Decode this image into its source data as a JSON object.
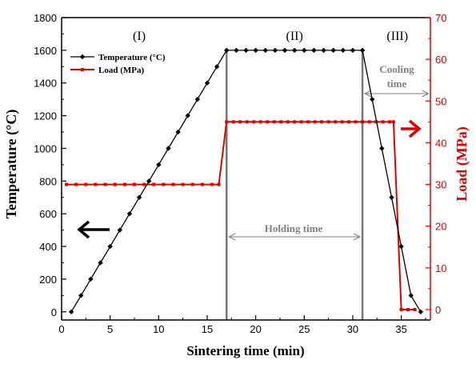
{
  "chart_data": {
    "type": "line",
    "xlabel": "Sintering time (min)",
    "ylabel_left": "Temperature (°C)",
    "ylabel_right": "Load (MPa)",
    "xlim": [
      0,
      38
    ],
    "ylim_left": [
      -50,
      1800
    ],
    "ylim_right": [
      -2.5,
      70
    ],
    "x_ticks": [
      0,
      5,
      10,
      15,
      20,
      25,
      30,
      35
    ],
    "y_left_ticks": [
      0,
      200,
      400,
      600,
      800,
      1000,
      1200,
      1400,
      1600,
      1800
    ],
    "y_right_ticks": [
      0,
      10,
      20,
      30,
      40,
      50,
      60,
      70
    ],
    "colors": {
      "temperature": "#000000",
      "load": "#e00000",
      "annotation": "#808080",
      "right_axis": "#e00000"
    },
    "series": [
      {
        "name": "Temperature (°C)",
        "axis": "left",
        "marker": "diamond",
        "x": [
          1,
          2,
          3,
          4,
          5,
          6,
          7,
          8,
          9,
          10,
          11,
          12,
          13,
          14,
          15,
          16,
          17,
          18,
          19,
          20,
          21,
          22,
          23,
          24,
          25,
          26,
          27,
          28,
          29,
          30,
          31,
          32,
          33,
          34,
          35,
          36,
          37
        ],
        "y": [
          0,
          100,
          200,
          300,
          400,
          500,
          600,
          700,
          800,
          900,
          1000,
          1100,
          1200,
          1300,
          1400,
          1500,
          1600,
          1600,
          1600,
          1600,
          1600,
          1600,
          1600,
          1600,
          1600,
          1600,
          1600,
          1600,
          1600,
          1600,
          1600,
          1300,
          1000,
          700,
          400,
          100,
          0
        ]
      },
      {
        "name": "Load (MPa)",
        "axis": "right",
        "marker": "square",
        "x": [
          0.5,
          1.5,
          2.5,
          3.5,
          4.5,
          5.5,
          6.5,
          7.5,
          8.5,
          9.5,
          10.5,
          11.5,
          12.5,
          13.5,
          14.5,
          15.5,
          16.2,
          17,
          17.7,
          18.4,
          19.1,
          19.8,
          20.5,
          21.2,
          21.9,
          22.6,
          23.3,
          24,
          24.7,
          25.4,
          26.1,
          26.8,
          27.5,
          28.2,
          28.9,
          29.6,
          30.3,
          31,
          31.7,
          32.4,
          33.1,
          33.8,
          34.2,
          35,
          35.7,
          36.4
        ],
        "y": [
          30,
          30,
          30,
          30,
          30,
          30,
          30,
          30,
          30,
          30,
          30,
          30,
          30,
          30,
          30,
          30,
          30,
          45,
          45,
          45,
          45,
          45,
          45,
          45,
          45,
          45,
          45,
          45,
          45,
          45,
          45,
          45,
          45,
          45,
          45,
          45,
          45,
          45,
          45,
          45,
          45,
          45,
          45,
          0,
          0,
          0
        ]
      }
    ],
    "legend_position": "top-left",
    "regions": [
      {
        "label": "(I)",
        "x": 8
      },
      {
        "label": "(II)",
        "x": 24
      },
      {
        "label": "(III)",
        "x": 34.6
      }
    ],
    "vertical_lines_x": [
      17,
      31
    ],
    "annotations": [
      {
        "text": "Holding time",
        "from_x": 17,
        "to_x": 31
      },
      {
        "text": "Cooling time",
        "line1": "Cooling",
        "line2": "time",
        "from_x": 31,
        "to_x": 37.8
      }
    ],
    "direction_arrows": [
      {
        "color": "black",
        "points": "left"
      },
      {
        "color": "red",
        "points": "right"
      }
    ]
  }
}
